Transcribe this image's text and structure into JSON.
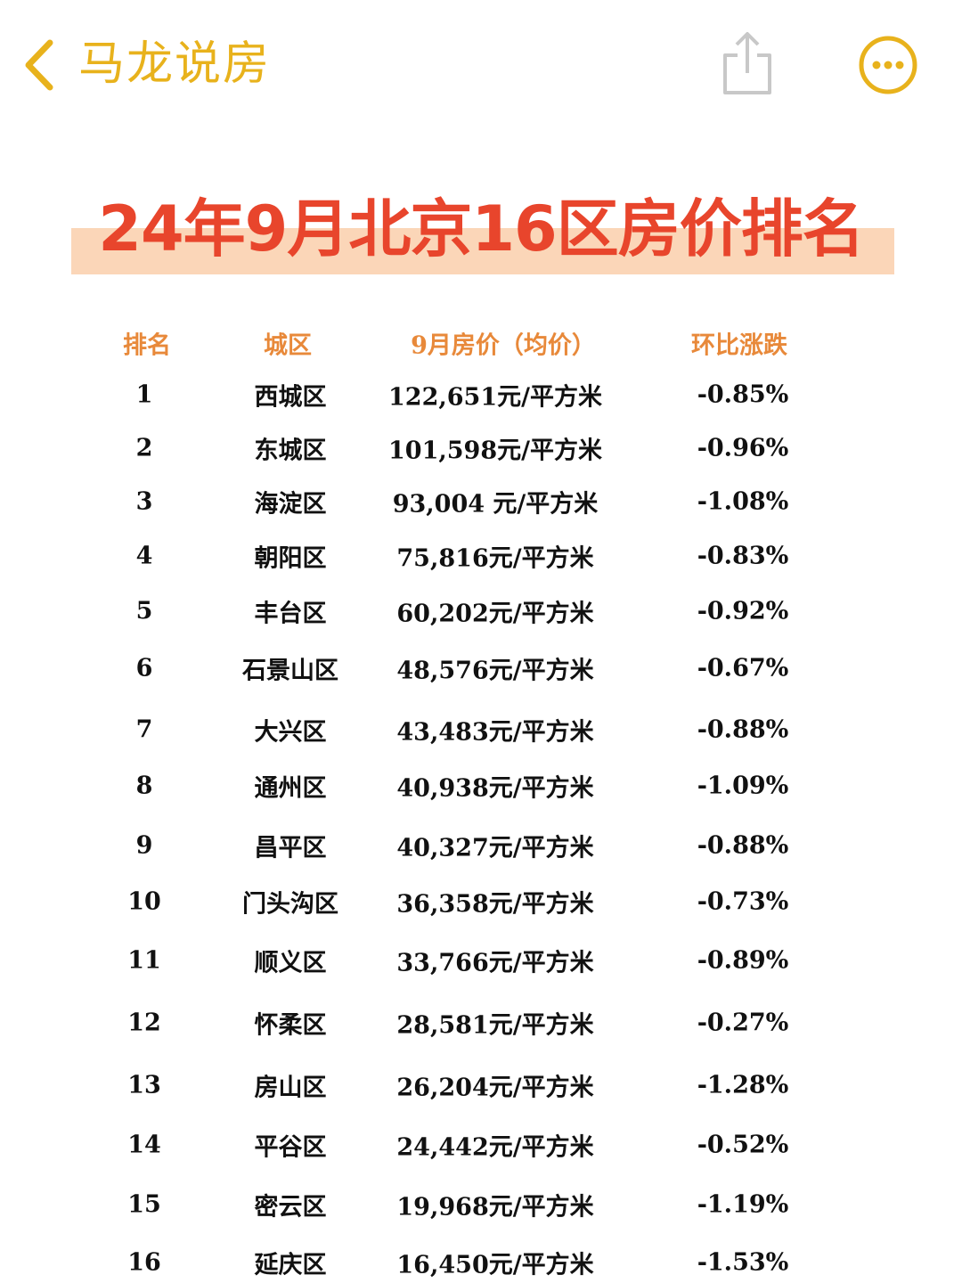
{
  "header": {
    "title": "马龙说房"
  },
  "document": {
    "title": "24年9月北京16区房价排名"
  },
  "table": {
    "columns": [
      "排名",
      "城区",
      "9月房价（均价）",
      "环比涨跌"
    ],
    "rows": [
      [
        "1",
        "西城区",
        "122,651元/平方米",
        "-0.85%"
      ],
      [
        "2",
        "东城区",
        "101,598元/平方米",
        "-0.96%"
      ],
      [
        "3",
        "海淀区",
        "93,004 元/平方米",
        "-1.08%"
      ],
      [
        "4",
        "朝阳区",
        "75,816元/平方米",
        "-0.83%"
      ],
      [
        "5",
        "丰台区",
        "60,202元/平方米",
        "-0.92%"
      ],
      [
        "6",
        "石景山区",
        "48,576元/平方米",
        "-0.67%"
      ],
      [
        "7",
        "大兴区",
        "43,483元/平方米",
        "-0.88%"
      ],
      [
        "8",
        "通州区",
        "40,938元/平方米",
        "-1.09%"
      ],
      [
        "9",
        "昌平区",
        "40,327元/平方米",
        "-0.88%"
      ],
      [
        "10",
        "门头沟区",
        "36,358元/平方米",
        "-0.73%"
      ],
      [
        "11",
        "顺义区",
        "33,766元/平方米",
        "-0.89%"
      ],
      [
        "12",
        "怀柔区",
        "28,581元/平方米",
        "-0.27%"
      ],
      [
        "13",
        "房山区",
        "26,204元/平方米",
        "-1.28%"
      ],
      [
        "14",
        "平谷区",
        "24,442元/平方米",
        "-0.52%"
      ],
      [
        "15",
        "密云区",
        "19,968元/平方米",
        "-1.19%"
      ],
      [
        "16",
        "延庆区",
        "16,450元/平方米",
        "-1.53%"
      ]
    ]
  }
}
